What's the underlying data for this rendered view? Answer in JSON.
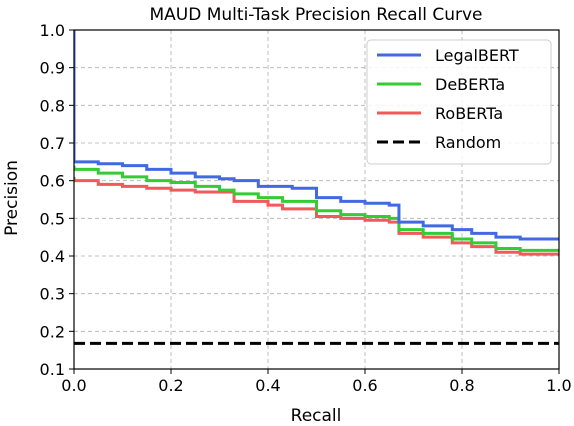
{
  "chart_data": {
    "type": "line",
    "title": "MAUD Multi-Task Precision Recall Curve",
    "xlabel": "Recall",
    "ylabel": "Precision",
    "xlim": [
      0.0,
      1.0
    ],
    "ylim": [
      0.1,
      1.0
    ],
    "xticks": [
      "0.0",
      "0.2",
      "0.4",
      "0.6",
      "0.8",
      "1.0"
    ],
    "yticks": [
      "0.1",
      "0.2",
      "0.3",
      "0.4",
      "0.5",
      "0.6",
      "0.7",
      "0.8",
      "0.9",
      "1.0"
    ],
    "grid": true,
    "legend_position": "top-right",
    "series": [
      {
        "name": "LegalBERT",
        "color": "#4169e1",
        "style": "step",
        "x": [
          0.0,
          0.0,
          0.05,
          0.1,
          0.15,
          0.2,
          0.25,
          0.3,
          0.33,
          0.38,
          0.45,
          0.5,
          0.5,
          0.55,
          0.6,
          0.65,
          0.67,
          0.67,
          0.72,
          0.78,
          0.82,
          0.87,
          0.92,
          1.0
        ],
        "y": [
          1.0,
          0.66,
          0.65,
          0.645,
          0.64,
          0.63,
          0.62,
          0.61,
          0.605,
          0.6,
          0.585,
          0.58,
          0.56,
          0.555,
          0.545,
          0.54,
          0.535,
          0.5,
          0.49,
          0.48,
          0.47,
          0.46,
          0.45,
          0.445
        ]
      },
      {
        "name": "DeBERTa",
        "color": "#33cc33",
        "style": "step",
        "x": [
          0.0,
          0.05,
          0.1,
          0.15,
          0.2,
          0.25,
          0.3,
          0.33,
          0.38,
          0.43,
          0.5,
          0.5,
          0.55,
          0.6,
          0.65,
          0.67,
          0.67,
          0.72,
          0.78,
          0.82,
          0.87,
          0.92,
          1.0
        ],
        "y": [
          0.64,
          0.63,
          0.62,
          0.61,
          0.6,
          0.595,
          0.585,
          0.575,
          0.565,
          0.555,
          0.545,
          0.525,
          0.52,
          0.51,
          0.505,
          0.5,
          0.48,
          0.47,
          0.46,
          0.445,
          0.435,
          0.42,
          0.415
        ]
      },
      {
        "name": "RoBERTa",
        "color": "#f05a5a",
        "style": "step",
        "x": [
          0.0,
          0.05,
          0.1,
          0.15,
          0.2,
          0.25,
          0.33,
          0.33,
          0.4,
          0.43,
          0.5,
          0.5,
          0.55,
          0.6,
          0.65,
          0.67,
          0.67,
          0.72,
          0.78,
          0.82,
          0.87,
          0.92,
          1.0
        ],
        "y": [
          0.61,
          0.6,
          0.59,
          0.585,
          0.58,
          0.575,
          0.57,
          0.55,
          0.545,
          0.535,
          0.525,
          0.51,
          0.505,
          0.5,
          0.495,
          0.49,
          0.47,
          0.46,
          0.45,
          0.435,
          0.425,
          0.41,
          0.405
        ]
      },
      {
        "name": "Random",
        "color": "#000000",
        "style": "dashed",
        "x": [
          0.0,
          1.0
        ],
        "y": [
          0.168,
          0.168
        ]
      }
    ]
  }
}
